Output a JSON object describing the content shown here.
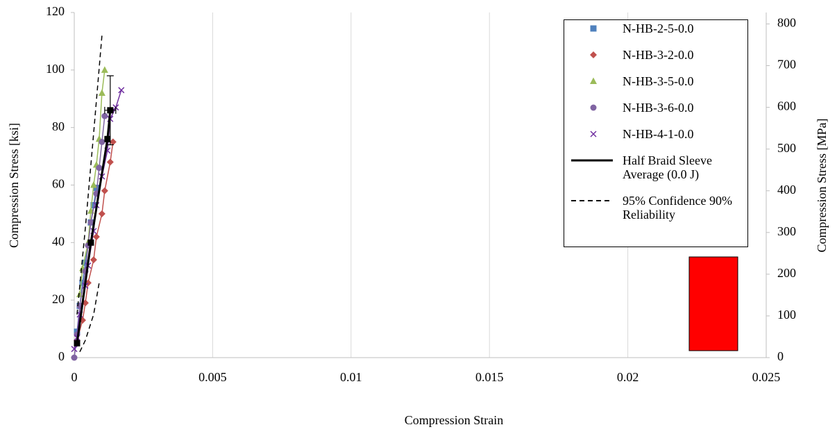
{
  "chart_data": {
    "type": "scatter",
    "x_label": "Compression Strain",
    "y_label": "Compression Stress [ksi]",
    "y2_label": "Compression Stress [MPa]",
    "xlim": [
      0,
      0.025
    ],
    "xticks": [
      0,
      0.005,
      0.01,
      0.015,
      0.02,
      0.025
    ],
    "ylim": [
      0,
      120
    ],
    "yticks": [
      0,
      20,
      40,
      60,
      80,
      100,
      120
    ],
    "y2lim": [
      0,
      827.4
    ],
    "y2ticks": [
      0,
      100,
      200,
      300,
      400,
      500,
      600,
      700,
      800
    ],
    "grid": "x",
    "legend": "top-right",
    "series": [
      {
        "name": "N-HB-2-5-0.0",
        "color": "#4f81bd",
        "marker": "square",
        "line": true,
        "x": [
          0.0001,
          0.0002,
          0.0003,
          0.0004,
          0.0006,
          0.0007,
          0.0008
        ],
        "values": [
          9,
          18,
          26,
          33,
          47,
          53,
          59
        ]
      },
      {
        "name": "N-HB-3-2-0.0",
        "color": "#c0504d",
        "marker": "diamond",
        "line": true,
        "x": [
          0.0001,
          0.0003,
          0.0004,
          0.0005,
          0.0007,
          0.0008,
          0.001,
          0.0011,
          0.0013,
          0.0014
        ],
        "values": [
          6,
          13,
          19,
          26,
          34,
          42,
          50,
          58,
          68,
          75
        ]
      },
      {
        "name": "N-HB-3-5-0.0",
        "color": "#9bbb59",
        "marker": "triangle",
        "line": true,
        "x": [
          0.0002,
          0.0003,
          0.0005,
          0.0006,
          0.0007,
          0.0008,
          0.0009,
          0.001,
          0.0011
        ],
        "values": [
          22,
          31,
          40,
          51,
          60,
          67,
          76,
          92,
          100
        ]
      },
      {
        "name": "N-HB-3-6-0.0",
        "color": "#8064a2",
        "marker": "circle",
        "line": true,
        "x": [
          0,
          0.0001,
          0.0002,
          0.0004,
          0.0005,
          0.0006,
          0.0008,
          0.0009,
          0.001,
          0.0011
        ],
        "values": [
          0,
          8,
          18,
          30,
          39,
          47,
          57,
          66,
          75,
          84
        ]
      },
      {
        "name": "N-HB-4-1-0.0",
        "color": "#7030a0",
        "marker": "x",
        "line": true,
        "x": [
          0,
          0.0001,
          0.0002,
          0.0004,
          0.0005,
          0.0007,
          0.0008,
          0.001,
          0.0012,
          0.0013,
          0.0015,
          0.0017
        ],
        "values": [
          3,
          7,
          15,
          25,
          32,
          44,
          53,
          63,
          72,
          83,
          87,
          93
        ]
      },
      {
        "name": "Half Braid Sleeve Average (0.0 J)",
        "color": "#000000",
        "marker": "square",
        "line": true,
        "width": 3,
        "x": [
          0.0001,
          0.0006,
          0.0012,
          0.0013
        ],
        "values": [
          5,
          40,
          76,
          86
        ],
        "y_err": [
          null,
          null,
          null,
          12
        ],
        "x_err": [
          null,
          null,
          null,
          0.0002
        ]
      },
      {
        "name": "95% Confidence 90% Reliability",
        "color": "#000000",
        "marker": "none",
        "line": true,
        "dash": true,
        "x": [
          0.0001,
          0.0004,
          0.0007,
          0.001,
          null,
          0.0002,
          0.0004,
          0.0007,
          0.0009
        ],
        "values": [
          15,
          45,
          78,
          112,
          null,
          2,
          6,
          15,
          26
        ]
      }
    ]
  }
}
